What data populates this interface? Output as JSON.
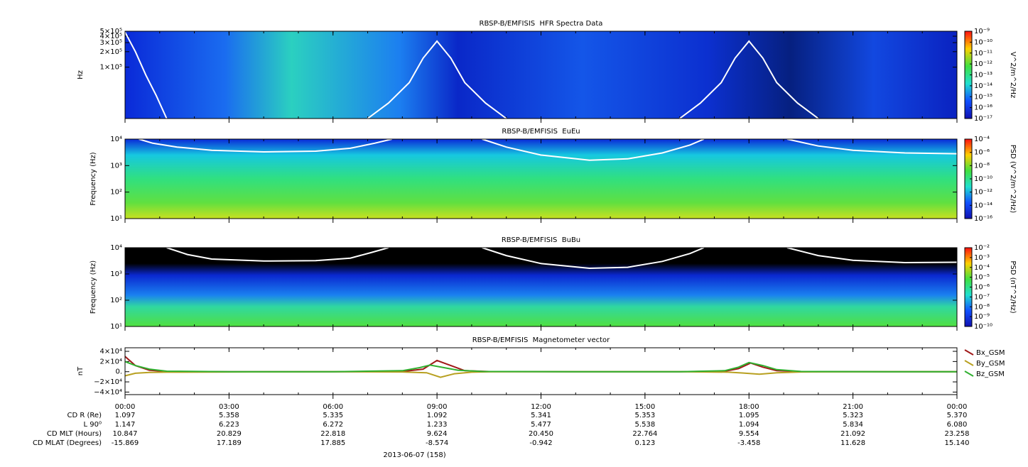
{
  "chart_data": [
    {
      "type": "spectrogram",
      "title": "RBSP-B/EMFISIS  HFR Spectra Data",
      "y_label": "Hz",
      "ylog": true,
      "ylim": [
        10000,
        500000
      ],
      "yticks": [
        {
          "value": 100000,
          "label": "1×10⁵"
        },
        {
          "value": 200000,
          "label": "2×10⁵"
        },
        {
          "value": 300000,
          "label": "3×10⁵"
        },
        {
          "value": 400000,
          "label": "4×10⁵"
        },
        {
          "value": 500000,
          "label": "5×10⁵"
        }
      ],
      "colorbar": {
        "label": "V^2/m^2/Hz",
        "zlog": true,
        "zlim": [
          1e-17,
          1e-09
        ],
        "zticks": [
          {
            "value": 1e-09,
            "label": "10⁻⁹"
          },
          {
            "value": 1e-10,
            "label": "10⁻¹⁰"
          },
          {
            "value": 1e-11,
            "label": "10⁻¹¹"
          },
          {
            "value": 1e-12,
            "label": "10⁻¹²"
          },
          {
            "value": 1e-13,
            "label": "10⁻¹³"
          },
          {
            "value": 1e-14,
            "label": "10⁻¹⁴"
          },
          {
            "value": 1e-15,
            "label": "10⁻¹⁵"
          },
          {
            "value": 1e-16,
            "label": "10⁻¹⁶"
          },
          {
            "value": 1e-17,
            "label": "10⁻¹⁷"
          }
        ]
      },
      "line": {
        "color": "#ffffff",
        "x": [
          0,
          0.3,
          0.6,
          0.9,
          1.2,
          4,
          7.0,
          7.6,
          8.2,
          8.6,
          9.0,
          9.4,
          9.8,
          10.4,
          11,
          13,
          16.0,
          16.6,
          17.2,
          17.6,
          18.0,
          18.4,
          18.8,
          19.4,
          20
        ],
        "values": [
          480000,
          200000,
          70000,
          28000,
          10000,
          null,
          10000,
          20000,
          50000,
          150000,
          320000,
          150000,
          50000,
          20000,
          10000,
          null,
          10000,
          20000,
          50000,
          150000,
          320000,
          150000,
          50000,
          20000,
          10000
        ]
      }
    },
    {
      "type": "spectrogram",
      "title": "RBSP-B/EMFISIS  EuEu",
      "y_label": "Frequency (Hz)",
      "ylog": true,
      "ylim": [
        10,
        10000
      ],
      "yticks": [
        {
          "value": 10,
          "label": "10¹"
        },
        {
          "value": 100,
          "label": "10²"
        },
        {
          "value": 1000,
          "label": "10³"
        },
        {
          "value": 10000,
          "label": "10⁴"
        }
      ],
      "colorbar": {
        "label": "PSD (V^2/m^2/Hz)",
        "zlog": true,
        "zlim": [
          1e-16,
          0.0001
        ],
        "zticks": [
          {
            "value": 0.0001,
            "label": "10⁻⁴"
          },
          {
            "value": 1e-06,
            "label": "10⁻⁶"
          },
          {
            "value": 1e-08,
            "label": "10⁻⁸"
          },
          {
            "value": 1e-10,
            "label": "10⁻¹⁰"
          },
          {
            "value": 1e-12,
            "label": "10⁻¹²"
          },
          {
            "value": 1e-14,
            "label": "10⁻¹⁴"
          },
          {
            "value": 1e-16,
            "label": "10⁻¹⁶"
          }
        ]
      },
      "line": {
        "color": "#ffffff",
        "x": [
          0.4,
          0.8,
          1.5,
          2.5,
          4,
          5.5,
          6.5,
          7.2,
          7.7,
          9,
          10.3,
          11,
          12,
          13.4,
          14.5,
          15.5,
          16.3,
          16.7,
          18,
          19.1,
          20,
          21,
          22.5,
          24
        ],
        "values": [
          10000,
          7000,
          5000,
          3800,
          3300,
          3500,
          4500,
          7000,
          10000,
          null,
          10000,
          5000,
          2500,
          1600,
          1800,
          3000,
          6000,
          10000,
          null,
          10000,
          5500,
          3800,
          3000,
          2800
        ]
      }
    },
    {
      "type": "spectrogram",
      "title": "RBSP-B/EMFISIS  BuBu",
      "y_label": "Frequency (Hz)",
      "ylog": true,
      "ylim": [
        10,
        10000
      ],
      "yticks": [
        {
          "value": 10,
          "label": "10¹"
        },
        {
          "value": 100,
          "label": "10²"
        },
        {
          "value": 1000,
          "label": "10³"
        },
        {
          "value": 10000,
          "label": "10⁴"
        }
      ],
      "colorbar": {
        "label": "PSD (nT^2/Hz)",
        "zlog": true,
        "zlim": [
          1e-10,
          0.01
        ],
        "zticks": [
          {
            "value": 0.01,
            "label": "10⁻²"
          },
          {
            "value": 0.001,
            "label": "10⁻³"
          },
          {
            "value": 0.0001,
            "label": "10⁻⁴"
          },
          {
            "value": 1e-05,
            "label": "10⁻⁵"
          },
          {
            "value": 1e-06,
            "label": "10⁻⁶"
          },
          {
            "value": 1e-07,
            "label": "10⁻⁷"
          },
          {
            "value": 1e-08,
            "label": "10⁻⁸"
          },
          {
            "value": 1e-09,
            "label": "10⁻⁹"
          },
          {
            "value": 1e-10,
            "label": "10⁻¹⁰"
          }
        ]
      },
      "line": {
        "color": "#ffffff",
        "x": [
          1.2,
          1.8,
          2.5,
          4,
          5.5,
          6.5,
          7.1,
          7.6,
          9,
          10.3,
          11,
          12,
          13.4,
          14.5,
          15.5,
          16.3,
          16.7,
          18,
          19.1,
          20,
          21,
          22.5,
          24
        ],
        "values": [
          10000,
          5500,
          3700,
          3100,
          3200,
          4000,
          6500,
          10000,
          null,
          10000,
          5000,
          2500,
          1650,
          1800,
          3000,
          6000,
          10000,
          null,
          10000,
          5000,
          3300,
          2700,
          2800
        ]
      }
    },
    {
      "type": "line",
      "title": "RBSP-B/EMFISIS  Magnetometer vector",
      "y_label": "nT",
      "ylim": [
        -45000,
        47000
      ],
      "yticks": [
        {
          "value": 40000,
          "label": "4×10⁴"
        },
        {
          "value": 20000,
          "label": "2×10⁴"
        },
        {
          "value": 0,
          "label": "0."
        },
        {
          "value": -20000,
          "label": "−2×10⁴"
        },
        {
          "value": -40000,
          "label": "−4×10⁴"
        }
      ],
      "xlim": [
        0,
        24
      ],
      "xticks": [
        {
          "value": 0,
          "label": "00:00"
        },
        {
          "value": 3,
          "label": "03:00"
        },
        {
          "value": 6,
          "label": "06:00"
        },
        {
          "value": 9,
          "label": "09:00"
        },
        {
          "value": 12,
          "label": "12:00"
        },
        {
          "value": 15,
          "label": "15:00"
        },
        {
          "value": 18,
          "label": "18:00"
        },
        {
          "value": 21,
          "label": "21:00"
        },
        {
          "value": 24,
          "label": "00:00"
        }
      ],
      "legend": "right",
      "series": [
        {
          "name": "Bx_GSM",
          "color": "#a01818",
          "x": [
            0,
            0.3,
            0.7,
            1.2,
            3,
            6,
            8,
            8.6,
            9,
            9.4,
            9.8,
            10.5,
            13,
            16,
            17.3,
            17.7,
            18.05,
            18.4,
            18.8,
            19.5,
            22,
            24
          ],
          "values": [
            30000,
            12000,
            3000,
            500,
            0,
            0,
            500,
            5000,
            22000,
            12000,
            2000,
            300,
            0,
            0,
            1000,
            6000,
            17000,
            9000,
            2000,
            300,
            0,
            0
          ]
        },
        {
          "name": "By_GSM",
          "color": "#b8a020",
          "x": [
            0,
            0.3,
            0.7,
            1.2,
            3,
            6,
            8,
            8.7,
            9.1,
            9.5,
            10,
            10.5,
            13,
            16,
            17.4,
            17.8,
            18.3,
            18.8,
            19.5,
            22,
            24
          ],
          "values": [
            -8000,
            -3000,
            -1500,
            -1000,
            -500,
            0,
            -500,
            -2000,
            -11000,
            -4000,
            -1000,
            -300,
            0,
            0,
            -1000,
            -2500,
            -5000,
            -2000,
            -500,
            0,
            0
          ]
        },
        {
          "name": "Bz_GSM",
          "color": "#30b030",
          "x": [
            0,
            0.3,
            0.7,
            1.2,
            3,
            6,
            8,
            8.5,
            8.8,
            9.2,
            9.6,
            10.3,
            13,
            16,
            17.3,
            17.7,
            18.0,
            18.4,
            18.8,
            19.5,
            22,
            24
          ],
          "values": [
            20000,
            12000,
            5000,
            1000,
            0,
            0,
            2000,
            8000,
            13000,
            8000,
            3000,
            500,
            0,
            0,
            2000,
            9000,
            18000,
            12000,
            4000,
            500,
            0,
            0
          ]
        }
      ],
      "ephemeris": [
        {
          "label": "CD R (Re)",
          "values": [
            "1.097",
            "5.358",
            "5.335",
            "1.092",
            "5.341",
            "5.353",
            "1.095",
            "5.323",
            "5.370"
          ]
        },
        {
          "label": "L 90⁰",
          "values": [
            "1.147",
            "6.223",
            "6.272",
            "1.233",
            "5.477",
            "5.538",
            "1.094",
            "5.834",
            "6.080"
          ]
        },
        {
          "label": "CD MLT (Hours)",
          "values": [
            "10.847",
            "20.829",
            "22.818",
            "9.624",
            "20.450",
            "22.764",
            "9.554",
            "21.092",
            "23.258"
          ]
        },
        {
          "label": "CD MLAT (Degrees)",
          "values": [
            "-15.869",
            "17.189",
            "17.885",
            "-8.574",
            "-0.942",
            "0.123",
            "-3.458",
            "11.628",
            "15.140"
          ]
        }
      ],
      "xlabel": "2013-06-07 (158)"
    }
  ]
}
